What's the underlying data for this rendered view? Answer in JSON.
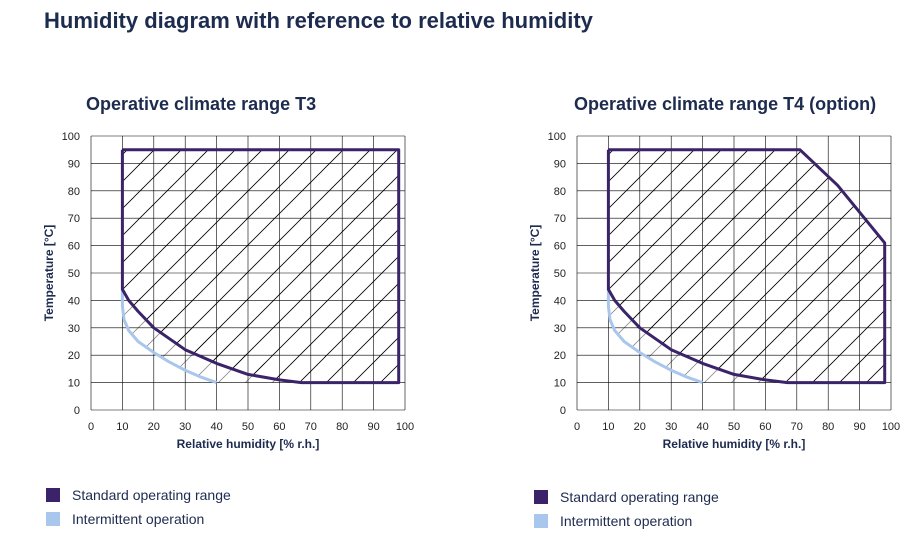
{
  "title": "Humidity diagram with reference to relative humidity",
  "colors": {
    "standard": "#3a2368",
    "intermittent": "#a9c6ec",
    "grid": "#000000",
    "hatch": "#000000"
  },
  "chart_data": [
    {
      "type": "area",
      "title": "Operative climate range T3",
      "xlabel": "Relative humidity [% r.h.]",
      "ylabel": "Temperature [°C]",
      "xlim": [
        0,
        100
      ],
      "ylim": [
        0,
        100
      ],
      "xticks": [
        "0",
        "10",
        "20",
        "30",
        "40",
        "50",
        "60",
        "70",
        "80",
        "90",
        "100"
      ],
      "yticks": [
        "0",
        "10",
        "20",
        "30",
        "40",
        "50",
        "60",
        "70",
        "80",
        "90",
        "100"
      ],
      "grid": true,
      "series": [
        {
          "name": "Standard operating range",
          "points": [
            [
              10,
              95
            ],
            [
              98,
              95
            ],
            [
              98,
              10
            ],
            [
              67,
              10
            ],
            [
              60,
              11
            ],
            [
              50,
              13
            ],
            [
              40,
              17
            ],
            [
              30,
              22
            ],
            [
              20,
              30
            ],
            [
              15,
              36
            ],
            [
              12,
              40
            ],
            [
              10,
              44
            ],
            [
              10,
              95
            ]
          ]
        },
        {
          "name": "Intermittent operation",
          "points": [
            [
              10,
              44
            ],
            [
              10,
              38
            ],
            [
              10.5,
              33
            ],
            [
              12,
              29
            ],
            [
              15,
              25
            ],
            [
              20,
              21
            ],
            [
              25,
              17.5
            ],
            [
              30,
              14.5
            ],
            [
              35,
              12
            ],
            [
              40,
              10
            ]
          ]
        }
      ],
      "legend": [
        "Standard operating range",
        "Intermittent operation"
      ]
    },
    {
      "type": "area",
      "title": "Operative climate range T4 (option)",
      "xlabel": "Relative humidity [% r.h.]",
      "ylabel": "Temperature [°C]",
      "xlim": [
        0,
        100
      ],
      "ylim": [
        0,
        100
      ],
      "xticks": [
        "0",
        "10",
        "20",
        "30",
        "40",
        "50",
        "60",
        "70",
        "80",
        "90",
        "100"
      ],
      "yticks": [
        "0",
        "10",
        "20",
        "30",
        "40",
        "50",
        "60",
        "70",
        "80",
        "90",
        "100"
      ],
      "grid": true,
      "series": [
        {
          "name": "Standard operating range",
          "points": [
            [
              10,
              95
            ],
            [
              71,
              95
            ],
            [
              83,
              82
            ],
            [
              98,
              61
            ],
            [
              98,
              10
            ],
            [
              67,
              10
            ],
            [
              60,
              11
            ],
            [
              50,
              13
            ],
            [
              40,
              17
            ],
            [
              30,
              22
            ],
            [
              20,
              30
            ],
            [
              15,
              36
            ],
            [
              12,
              40
            ],
            [
              10,
              44
            ],
            [
              10,
              95
            ]
          ]
        },
        {
          "name": "Intermittent operation",
          "points": [
            [
              10,
              44
            ],
            [
              10,
              38
            ],
            [
              10.5,
              33
            ],
            [
              12,
              29
            ],
            [
              15,
              25
            ],
            [
              20,
              21
            ],
            [
              25,
              17.5
            ],
            [
              30,
              14.5
            ],
            [
              35,
              12
            ],
            [
              40,
              10
            ]
          ]
        }
      ],
      "legend": [
        "Standard operating range",
        "Intermittent operation"
      ]
    }
  ]
}
